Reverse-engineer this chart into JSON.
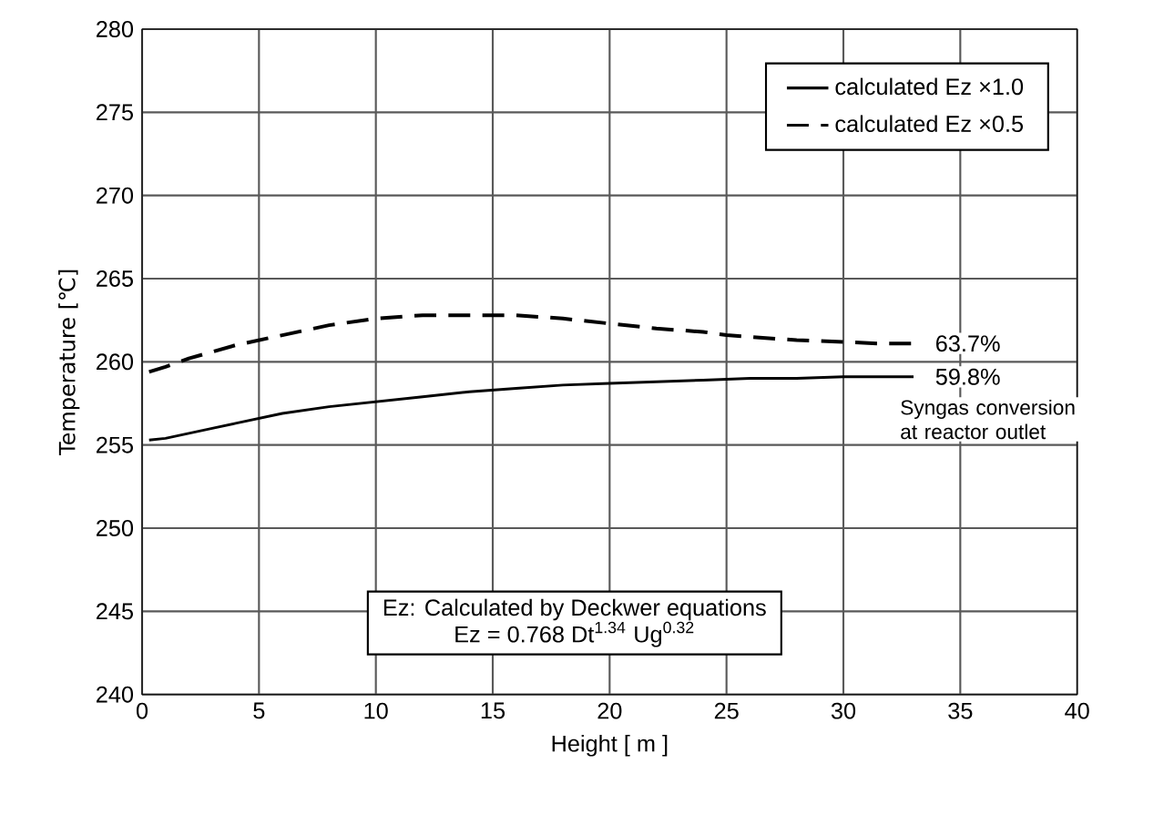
{
  "chart_data": {
    "type": "line",
    "xlabel": "Height [ m ]",
    "ylabel": "Temperature [℃]",
    "xlim": [
      0,
      40
    ],
    "ylim": [
      240,
      280
    ],
    "xticks": [
      0,
      5,
      10,
      15,
      20,
      25,
      30,
      35,
      40
    ],
    "yticks": [
      240,
      245,
      250,
      255,
      260,
      265,
      270,
      275,
      280
    ],
    "grid": true,
    "legend": "top right",
    "series": [
      {
        "name": "calculated  Ez ×1.0",
        "color": "#000000",
        "line_style": "solid",
        "x": [
          0.3,
          1,
          2,
          3,
          4,
          5,
          6,
          8,
          10,
          12,
          14,
          16,
          18,
          20,
          22,
          24,
          26,
          28,
          30,
          31.5,
          33
        ],
        "values": [
          255.3,
          255.4,
          255.7,
          256.0,
          256.3,
          256.6,
          256.9,
          257.3,
          257.6,
          257.9,
          258.2,
          258.4,
          258.6,
          258.7,
          258.8,
          258.9,
          259.0,
          259.0,
          259.1,
          259.1,
          259.1
        ]
      },
      {
        "name": "calculated  Ez ×0.5",
        "color": "#000000",
        "line_style": "dashed",
        "x": [
          0.3,
          1,
          2,
          3,
          4,
          5,
          6,
          8,
          10,
          11,
          12,
          14,
          16,
          18,
          20,
          22,
          24,
          25,
          26,
          28,
          30,
          31.5,
          33
        ],
        "values": [
          259.4,
          259.7,
          260.2,
          260.6,
          261.0,
          261.3,
          261.6,
          262.2,
          262.6,
          262.7,
          262.8,
          262.8,
          262.8,
          262.6,
          262.3,
          262.0,
          261.8,
          261.6,
          261.5,
          261.3,
          261.2,
          261.1,
          261.1
        ]
      }
    ],
    "annotations": [
      {
        "text": "63.7%",
        "x": 33,
        "y": 261.1
      },
      {
        "text": "59.8%",
        "x": 33,
        "y": 259.1
      },
      "Syngas conversion at reactor outlet",
      "Ez: Calculated by Deckwer equations",
      "Ez = 0.768 Dt$^{1.34}$ Ug$^{0.32}$"
    ]
  }
}
